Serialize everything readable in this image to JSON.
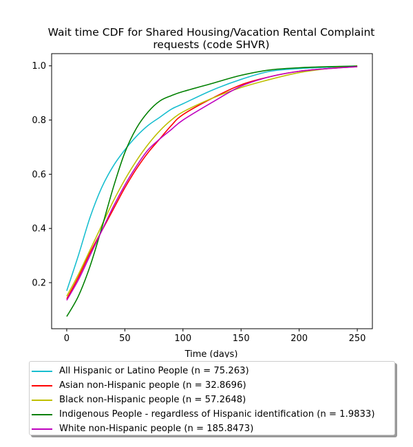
{
  "chart_data": {
    "type": "line",
    "title": "Wait time CDF for Shared Housing/Vacation Rental Complaint requests (code SHVR)",
    "title_lines": [
      "Wait time CDF for Shared Housing/Vacation Rental Complaint",
      "requests (code SHVR)"
    ],
    "xlabel": "Time (days)",
    "ylabel": "",
    "xlim": [
      -13,
      263
    ],
    "ylim": [
      0.03,
      1.045
    ],
    "xticks": [
      0,
      50,
      100,
      150,
      200,
      250
    ],
    "yticks": [
      0.2,
      0.4,
      0.6,
      0.8,
      1.0
    ],
    "ytick_labels": [
      "0.2",
      "0.4",
      "0.6",
      "0.8",
      "1.0"
    ],
    "grid": false,
    "legend_position": "below",
    "series": [
      {
        "name": "All Hispanic or Latino People (n = 75.263)",
        "color": "#17becf",
        "x": [
          0,
          10,
          20,
          30,
          40,
          50,
          60,
          70,
          80,
          90,
          100,
          125,
          150,
          175,
          200,
          225,
          250
        ],
        "y": [
          0.17,
          0.3,
          0.44,
          0.55,
          0.63,
          0.69,
          0.74,
          0.78,
          0.81,
          0.84,
          0.86,
          0.91,
          0.95,
          0.98,
          0.99,
          0.995,
          1.0
        ]
      },
      {
        "name": "Asian non-Hispanic people (n = 32.8696)",
        "color": "#ff0000",
        "x": [
          0,
          10,
          20,
          30,
          40,
          50,
          60,
          70,
          80,
          90,
          100,
          125,
          150,
          175,
          200,
          225,
          250
        ],
        "y": [
          0.14,
          0.22,
          0.31,
          0.39,
          0.47,
          0.55,
          0.62,
          0.68,
          0.73,
          0.78,
          0.82,
          0.88,
          0.93,
          0.96,
          0.98,
          0.99,
          0.997
        ]
      },
      {
        "name": "Black non-Hispanic people (n = 57.2648)",
        "color": "#bfbf00",
        "x": [
          0,
          10,
          20,
          30,
          40,
          50,
          60,
          70,
          80,
          90,
          100,
          125,
          150,
          175,
          200,
          225,
          250
        ],
        "y": [
          0.15,
          0.23,
          0.32,
          0.41,
          0.5,
          0.58,
          0.65,
          0.71,
          0.76,
          0.8,
          0.83,
          0.88,
          0.92,
          0.95,
          0.975,
          0.99,
          1.0
        ]
      },
      {
        "name": "Indigenous People - regardless of Hispanic identification (n = 1.9833)",
        "color": "#008000",
        "x": [
          0,
          10,
          20,
          30,
          40,
          50,
          60,
          70,
          80,
          90,
          100,
          125,
          150,
          175,
          200,
          225,
          250
        ],
        "y": [
          0.075,
          0.15,
          0.26,
          0.4,
          0.55,
          0.68,
          0.77,
          0.83,
          0.87,
          0.89,
          0.905,
          0.935,
          0.965,
          0.985,
          0.993,
          0.997,
          0.999
        ]
      },
      {
        "name": "White non-Hispanic people (n = 185.8473)",
        "color": "#bf00bf",
        "x": [
          0,
          10,
          20,
          30,
          40,
          50,
          60,
          70,
          80,
          90,
          100,
          125,
          150,
          175,
          200,
          225,
          250
        ],
        "y": [
          0.135,
          0.21,
          0.3,
          0.39,
          0.48,
          0.56,
          0.63,
          0.69,
          0.73,
          0.765,
          0.8,
          0.865,
          0.925,
          0.96,
          0.98,
          0.99,
          0.997
        ]
      }
    ]
  }
}
